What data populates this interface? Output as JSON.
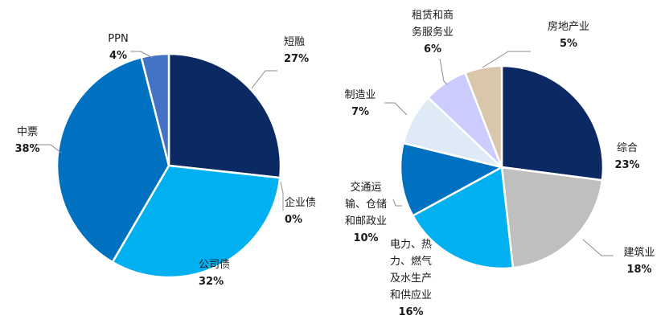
{
  "chart_data": [
    {
      "type": "pie",
      "title": "",
      "start": "top, clockwise",
      "slices": [
        {
          "label": "短融",
          "value": 27,
          "pct_label": "27%",
          "color": "#0b2a63"
        },
        {
          "label": "企业债",
          "value": 0,
          "pct_label": "0%",
          "color": "#0b2a63"
        },
        {
          "label": "公司债",
          "value": 32,
          "pct_label": "32%",
          "color": "#00b0f0"
        },
        {
          "label": "中票",
          "value": 38,
          "pct_label": "38%",
          "color": "#0070c0"
        },
        {
          "label": "PPN",
          "value": 4,
          "pct_label": "4%",
          "color": "#4472c4"
        }
      ]
    },
    {
      "type": "pie",
      "title": "",
      "start": "top, clockwise",
      "slices": [
        {
          "label": "综合",
          "value": 23,
          "pct_label": "23%",
          "color": "#0b2a63"
        },
        {
          "label": "建筑业",
          "value": 18,
          "pct_label": "18%",
          "color": "#bfbfbf"
        },
        {
          "label": "电力、热力、燃气及水生产和供应业",
          "value": 16,
          "pct_label": "16%",
          "color": "#00b0f0"
        },
        {
          "label": "交通运输、仓储和邮政业",
          "value": 10,
          "pct_label": "10%",
          "color": "#0070c0"
        },
        {
          "label": "制造业",
          "value": 7,
          "pct_label": "7%",
          "color": "#deebf7"
        },
        {
          "label": "租赁和商务服务业",
          "value": 6,
          "pct_label": "6%",
          "color": "#ccccff"
        },
        {
          "label": "房地产业",
          "value": 5,
          "pct_label": "5%",
          "color": "#d9c6ab"
        }
      ]
    }
  ],
  "label_lines": {
    "c0": [
      [
        "短融"
      ],
      [
        "企业债"
      ],
      [
        "公司债"
      ],
      [
        "中票"
      ],
      [
        "PPN"
      ]
    ],
    "c1": [
      [
        "综合"
      ],
      [
        "建筑业"
      ],
      [
        "电力、热",
        "力、燃气",
        "及水生产",
        "和供应业"
      ],
      [
        "交通运",
        "输、仓储",
        "和邮政业"
      ],
      [
        "制造业"
      ],
      [
        "租赁和商",
        "务服务业"
      ],
      [
        "房地产业"
      ]
    ]
  }
}
